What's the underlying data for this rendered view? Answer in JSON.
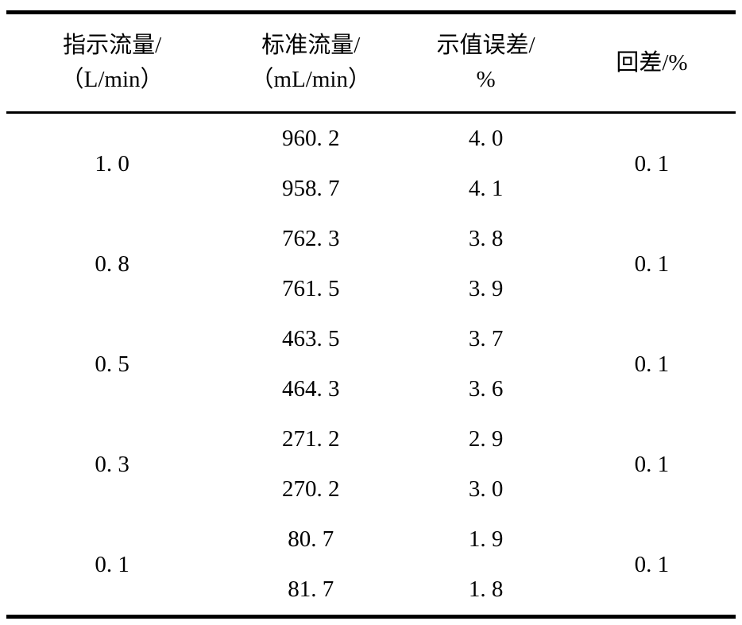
{
  "colors": {
    "background": "#ffffff",
    "text": "#000000",
    "rule": "#000000"
  },
  "table": {
    "headers": [
      {
        "line1": "指示流量/",
        "line2": "（L/min）"
      },
      {
        "line1": "标准流量/",
        "line2": "（mL/min）"
      },
      {
        "line1": "示值误差/",
        "line2": "%"
      },
      {
        "line1": "回差/%"
      }
    ],
    "groups": [
      {
        "indicated": "1. 0",
        "rows": [
          {
            "standard": "960. 2",
            "error": "4. 0"
          },
          {
            "standard": "958. 7",
            "error": "4. 1"
          }
        ],
        "hysteresis": "0. 1"
      },
      {
        "indicated": "0. 8",
        "rows": [
          {
            "standard": "762. 3",
            "error": "3. 8"
          },
          {
            "standard": "761. 5",
            "error": "3. 9"
          }
        ],
        "hysteresis": "0. 1"
      },
      {
        "indicated": "0. 5",
        "rows": [
          {
            "standard": "463. 5",
            "error": "3. 7"
          },
          {
            "standard": "464. 3",
            "error": "3. 6"
          }
        ],
        "hysteresis": "0. 1"
      },
      {
        "indicated": "0. 3",
        "rows": [
          {
            "standard": "271. 2",
            "error": "2. 9"
          },
          {
            "standard": "270. 2",
            "error": "3. 0"
          }
        ],
        "hysteresis": "0. 1"
      },
      {
        "indicated": "0. 1",
        "rows": [
          {
            "standard": "80. 7",
            "error": "1. 9"
          },
          {
            "standard": "81. 7",
            "error": "1. 8"
          }
        ],
        "hysteresis": "0. 1"
      }
    ]
  }
}
